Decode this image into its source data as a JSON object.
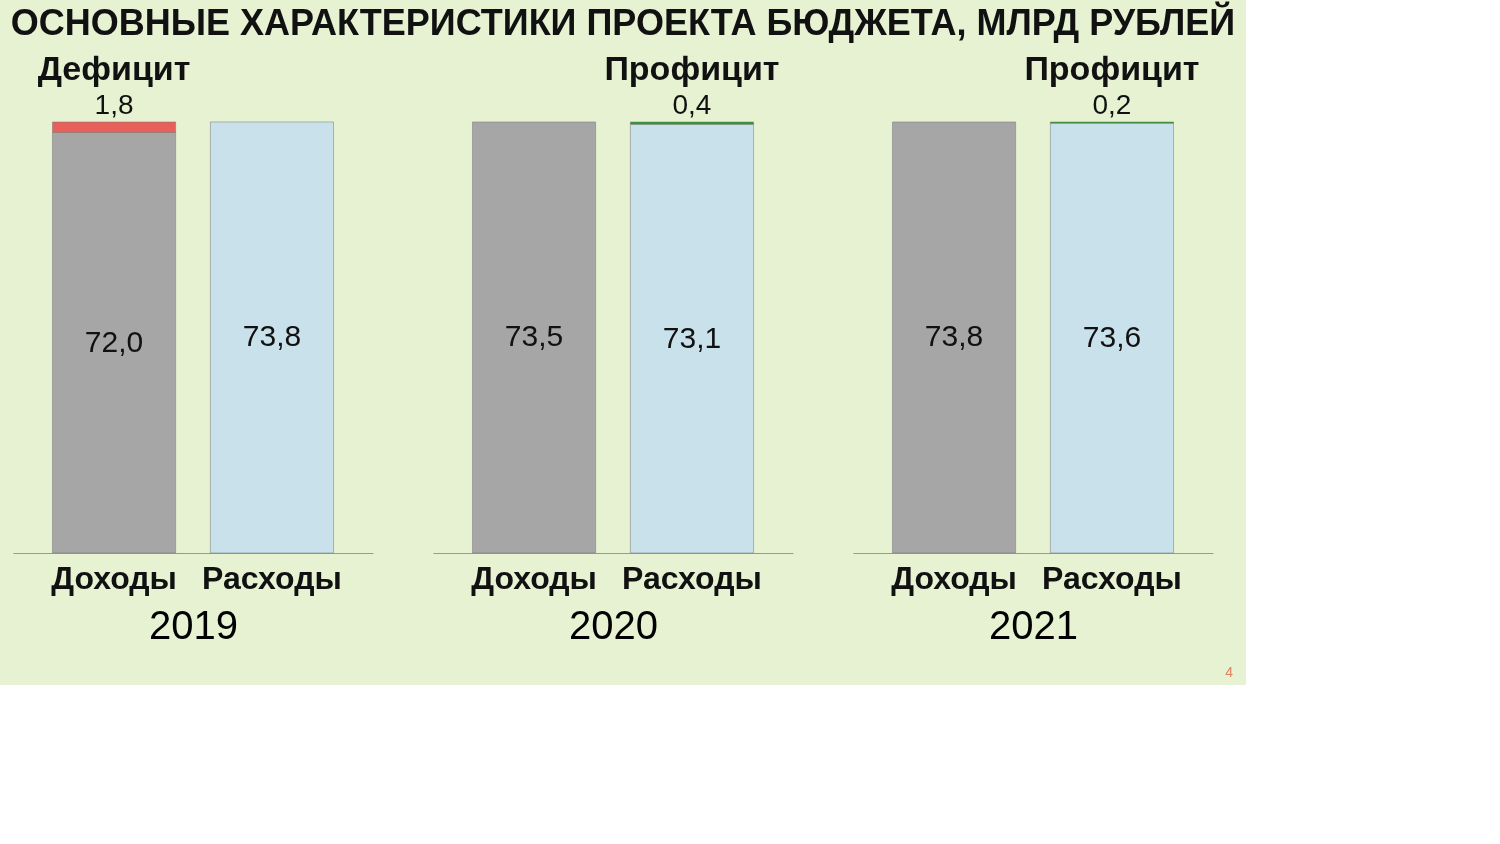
{
  "chart_data": [
    {
      "type": "bar",
      "title": "ОСНОВНЫЕ ХАРАКТЕРИСТИКИ ПРОЕКТА БЮДЖЕТА, МЛРД  РУБЛЕЙ",
      "xlabel": "2019",
      "stacked": true,
      "tick_labels": "x",
      "categories": [
        "Доходы",
        "Расходы"
      ],
      "series": [
        {
          "colors": [
            "#a6a6a6",
            "#c9e1ea"
          ],
          "values": [
            72.0,
            73.8
          ],
          "value_labels": [
            "72,0",
            "73,8"
          ]
        },
        {
          "name": "Дефицит",
          "color": "#e8605a",
          "values": [
            1.8,
            null
          ],
          "value_labels": [
            "1,8",
            null
          ]
        }
      ]
    },
    {
      "type": "bar",
      "xlabel": "2020",
      "stacked": true,
      "tick_labels": "x",
      "categories": [
        "Доходы",
        "Расходы"
      ],
      "series": [
        {
          "colors": [
            "#a6a6a6",
            "#c9e1ea"
          ],
          "values": [
            73.5,
            73.1
          ],
          "value_labels": [
            "73,5",
            "73,1"
          ]
        },
        {
          "name": "Профицит",
          "color": "#2e9a2e",
          "values": [
            null,
            0.4
          ],
          "value_labels": [
            null,
            "0,4"
          ]
        }
      ]
    },
    {
      "type": "bar",
      "xlabel": "2021",
      "stacked": true,
      "tick_labels": "x",
      "categories": [
        "Доходы",
        "Расходы"
      ],
      "series": [
        {
          "colors": [
            "#a6a6a6",
            "#c9e1ea"
          ],
          "values": [
            73.8,
            73.6
          ],
          "value_labels": [
            "73,8",
            "73,6"
          ]
        },
        {
          "name": "Профицит",
          "color": "#2e9a2e",
          "values": [
            null,
            0.2
          ],
          "value_labels": [
            null,
            "0,2"
          ]
        }
      ],
      "annotations": [
        "4"
      ]
    }
  ]
}
